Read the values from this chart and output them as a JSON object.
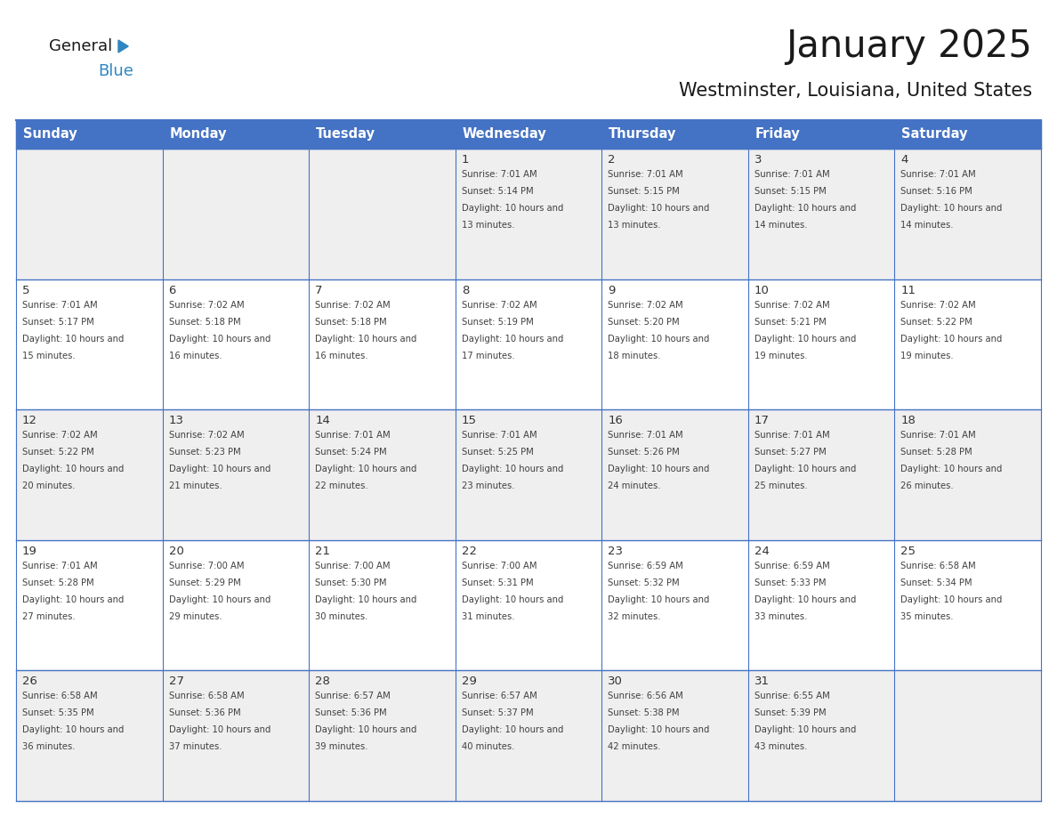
{
  "title": "January 2025",
  "subtitle": "Westminster, Louisiana, United States",
  "header_bg": "#4472C4",
  "header_text_color": "#FFFFFF",
  "header_font_size": 10.5,
  "day_names": [
    "Sunday",
    "Monday",
    "Tuesday",
    "Wednesday",
    "Thursday",
    "Friday",
    "Saturday"
  ],
  "title_font_size": 30,
  "subtitle_font_size": 15,
  "cell_text_color": "#404040",
  "cell_num_color": "#333333",
  "row_bg_odd": "#EFEFEF",
  "row_bg_even": "#FFFFFF",
  "line_color": "#4472C4",
  "general_black": "#1a1a1a",
  "general_blue": "#2e86c1",
  "logo_general_size": 13,
  "logo_blue_size": 13,
  "cell_date_fontsize": 9.5,
  "cell_info_fontsize": 7.2,
  "days": [
    {
      "date": 1,
      "col": 3,
      "row": 0,
      "sunrise": "7:01 AM",
      "sunset": "5:14 PM",
      "daylight": "10 hours and 13 minutes."
    },
    {
      "date": 2,
      "col": 4,
      "row": 0,
      "sunrise": "7:01 AM",
      "sunset": "5:15 PM",
      "daylight": "10 hours and 13 minutes."
    },
    {
      "date": 3,
      "col": 5,
      "row": 0,
      "sunrise": "7:01 AM",
      "sunset": "5:15 PM",
      "daylight": "10 hours and 14 minutes."
    },
    {
      "date": 4,
      "col": 6,
      "row": 0,
      "sunrise": "7:01 AM",
      "sunset": "5:16 PM",
      "daylight": "10 hours and 14 minutes."
    },
    {
      "date": 5,
      "col": 0,
      "row": 1,
      "sunrise": "7:01 AM",
      "sunset": "5:17 PM",
      "daylight": "10 hours and 15 minutes."
    },
    {
      "date": 6,
      "col": 1,
      "row": 1,
      "sunrise": "7:02 AM",
      "sunset": "5:18 PM",
      "daylight": "10 hours and 16 minutes."
    },
    {
      "date": 7,
      "col": 2,
      "row": 1,
      "sunrise": "7:02 AM",
      "sunset": "5:18 PM",
      "daylight": "10 hours and 16 minutes."
    },
    {
      "date": 8,
      "col": 3,
      "row": 1,
      "sunrise": "7:02 AM",
      "sunset": "5:19 PM",
      "daylight": "10 hours and 17 minutes."
    },
    {
      "date": 9,
      "col": 4,
      "row": 1,
      "sunrise": "7:02 AM",
      "sunset": "5:20 PM",
      "daylight": "10 hours and 18 minutes."
    },
    {
      "date": 10,
      "col": 5,
      "row": 1,
      "sunrise": "7:02 AM",
      "sunset": "5:21 PM",
      "daylight": "10 hours and 19 minutes."
    },
    {
      "date": 11,
      "col": 6,
      "row": 1,
      "sunrise": "7:02 AM",
      "sunset": "5:22 PM",
      "daylight": "10 hours and 19 minutes."
    },
    {
      "date": 12,
      "col": 0,
      "row": 2,
      "sunrise": "7:02 AM",
      "sunset": "5:22 PM",
      "daylight": "10 hours and 20 minutes."
    },
    {
      "date": 13,
      "col": 1,
      "row": 2,
      "sunrise": "7:02 AM",
      "sunset": "5:23 PM",
      "daylight": "10 hours and 21 minutes."
    },
    {
      "date": 14,
      "col": 2,
      "row": 2,
      "sunrise": "7:01 AM",
      "sunset": "5:24 PM",
      "daylight": "10 hours and 22 minutes."
    },
    {
      "date": 15,
      "col": 3,
      "row": 2,
      "sunrise": "7:01 AM",
      "sunset": "5:25 PM",
      "daylight": "10 hours and 23 minutes."
    },
    {
      "date": 16,
      "col": 4,
      "row": 2,
      "sunrise": "7:01 AM",
      "sunset": "5:26 PM",
      "daylight": "10 hours and 24 minutes."
    },
    {
      "date": 17,
      "col": 5,
      "row": 2,
      "sunrise": "7:01 AM",
      "sunset": "5:27 PM",
      "daylight": "10 hours and 25 minutes."
    },
    {
      "date": 18,
      "col": 6,
      "row": 2,
      "sunrise": "7:01 AM",
      "sunset": "5:28 PM",
      "daylight": "10 hours and 26 minutes."
    },
    {
      "date": 19,
      "col": 0,
      "row": 3,
      "sunrise": "7:01 AM",
      "sunset": "5:28 PM",
      "daylight": "10 hours and 27 minutes."
    },
    {
      "date": 20,
      "col": 1,
      "row": 3,
      "sunrise": "7:00 AM",
      "sunset": "5:29 PM",
      "daylight": "10 hours and 29 minutes."
    },
    {
      "date": 21,
      "col": 2,
      "row": 3,
      "sunrise": "7:00 AM",
      "sunset": "5:30 PM",
      "daylight": "10 hours and 30 minutes."
    },
    {
      "date": 22,
      "col": 3,
      "row": 3,
      "sunrise": "7:00 AM",
      "sunset": "5:31 PM",
      "daylight": "10 hours and 31 minutes."
    },
    {
      "date": 23,
      "col": 4,
      "row": 3,
      "sunrise": "6:59 AM",
      "sunset": "5:32 PM",
      "daylight": "10 hours and 32 minutes."
    },
    {
      "date": 24,
      "col": 5,
      "row": 3,
      "sunrise": "6:59 AM",
      "sunset": "5:33 PM",
      "daylight": "10 hours and 33 minutes."
    },
    {
      "date": 25,
      "col": 6,
      "row": 3,
      "sunrise": "6:58 AM",
      "sunset": "5:34 PM",
      "daylight": "10 hours and 35 minutes."
    },
    {
      "date": 26,
      "col": 0,
      "row": 4,
      "sunrise": "6:58 AM",
      "sunset": "5:35 PM",
      "daylight": "10 hours and 36 minutes."
    },
    {
      "date": 27,
      "col": 1,
      "row": 4,
      "sunrise": "6:58 AM",
      "sunset": "5:36 PM",
      "daylight": "10 hours and 37 minutes."
    },
    {
      "date": 28,
      "col": 2,
      "row": 4,
      "sunrise": "6:57 AM",
      "sunset": "5:36 PM",
      "daylight": "10 hours and 39 minutes."
    },
    {
      "date": 29,
      "col": 3,
      "row": 4,
      "sunrise": "6:57 AM",
      "sunset": "5:37 PM",
      "daylight": "10 hours and 40 minutes."
    },
    {
      "date": 30,
      "col": 4,
      "row": 4,
      "sunrise": "6:56 AM",
      "sunset": "5:38 PM",
      "daylight": "10 hours and 42 minutes."
    },
    {
      "date": 31,
      "col": 5,
      "row": 4,
      "sunrise": "6:55 AM",
      "sunset": "5:39 PM",
      "daylight": "10 hours and 43 minutes."
    }
  ]
}
